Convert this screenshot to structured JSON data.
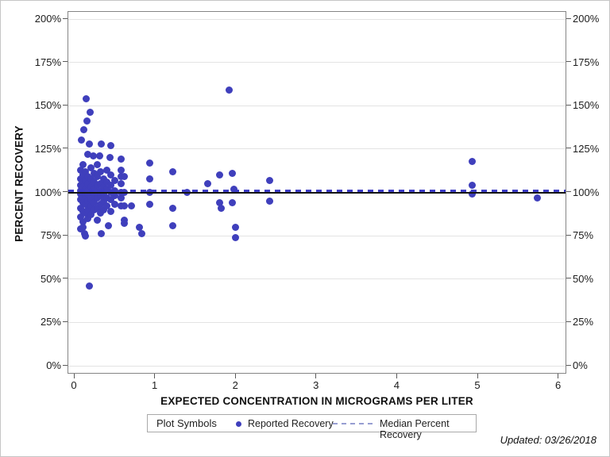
{
  "chart_data": {
    "type": "scatter",
    "xlabel": "EXPECTED CONCENTRATION IN MICROGRAMS PER LITER",
    "ylabel": "PERCENT RECOVERY",
    "xlim": [
      0,
      6
    ],
    "ylim": [
      0,
      200
    ],
    "x_ticks": [
      "0",
      "1",
      "2",
      "3",
      "4",
      "5",
      "6"
    ],
    "y_ticks": [
      "0%",
      "25%",
      "50%",
      "75%",
      "100%",
      "125%",
      "150%",
      "175%",
      "200%"
    ],
    "grid": "horizontal-only",
    "point_color": "#3f3fbc",
    "median_line_color": "#3b3bc4",
    "reference_line_color": "#141414",
    "reference_line_value": 100,
    "median_percent_recovery": 101,
    "series_name": "Reported Recovery",
    "points": [
      [
        0.14,
        154
      ],
      [
        0.19,
        146
      ],
      [
        0.15,
        141
      ],
      [
        0.11,
        136
      ],
      [
        0.08,
        130
      ],
      [
        0.18,
        128
      ],
      [
        0.33,
        128
      ],
      [
        0.45,
        127
      ],
      [
        0.16,
        122
      ],
      [
        0.23,
        121
      ],
      [
        0.31,
        121
      ],
      [
        0.44,
        120
      ],
      [
        0.58,
        119
      ],
      [
        0.07,
        113
      ],
      [
        0.07,
        108
      ],
      [
        0.07,
        104
      ],
      [
        0.07,
        101
      ],
      [
        0.07,
        99
      ],
      [
        0.07,
        96
      ],
      [
        0.07,
        91
      ],
      [
        0.07,
        86
      ],
      [
        0.07,
        79
      ],
      [
        0.1,
        116
      ],
      [
        0.1,
        110
      ],
      [
        0.1,
        106
      ],
      [
        0.1,
        103
      ],
      [
        0.1,
        100
      ],
      [
        0.1,
        97
      ],
      [
        0.1,
        94
      ],
      [
        0.1,
        89
      ],
      [
        0.1,
        83
      ],
      [
        0.13,
        112
      ],
      [
        0.13,
        107
      ],
      [
        0.13,
        102
      ],
      [
        0.13,
        100
      ],
      [
        0.13,
        98
      ],
      [
        0.13,
        93
      ],
      [
        0.13,
        88
      ],
      [
        0.16,
        109
      ],
      [
        0.16,
        105
      ],
      [
        0.16,
        101
      ],
      [
        0.16,
        99
      ],
      [
        0.16,
        95
      ],
      [
        0.16,
        90
      ],
      [
        0.16,
        85
      ],
      [
        0.2,
        114
      ],
      [
        0.2,
        108
      ],
      [
        0.2,
        103
      ],
      [
        0.2,
        100
      ],
      [
        0.2,
        96
      ],
      [
        0.2,
        92
      ],
      [
        0.2,
        87
      ],
      [
        0.24,
        111
      ],
      [
        0.24,
        106
      ],
      [
        0.24,
        102
      ],
      [
        0.24,
        98
      ],
      [
        0.24,
        94
      ],
      [
        0.24,
        90
      ],
      [
        0.28,
        116
      ],
      [
        0.28,
        109
      ],
      [
        0.28,
        104
      ],
      [
        0.28,
        100
      ],
      [
        0.28,
        97
      ],
      [
        0.28,
        91
      ],
      [
        0.28,
        84
      ],
      [
        0.32,
        112
      ],
      [
        0.32,
        105
      ],
      [
        0.32,
        101
      ],
      [
        0.32,
        98
      ],
      [
        0.32,
        93
      ],
      [
        0.32,
        88
      ],
      [
        0.36,
        108
      ],
      [
        0.36,
        103
      ],
      [
        0.36,
        99
      ],
      [
        0.36,
        95
      ],
      [
        0.36,
        90
      ],
      [
        0.4,
        113
      ],
      [
        0.4,
        106
      ],
      [
        0.4,
        102
      ],
      [
        0.4,
        97
      ],
      [
        0.4,
        92
      ],
      [
        0.45,
        110
      ],
      [
        0.45,
        104
      ],
      [
        0.45,
        100
      ],
      [
        0.45,
        96
      ],
      [
        0.45,
        89
      ],
      [
        0.5,
        107
      ],
      [
        0.5,
        101
      ],
      [
        0.5,
        98
      ],
      [
        0.5,
        93
      ],
      [
        0.58,
        113
      ],
      [
        0.58,
        109
      ],
      [
        0.58,
        105
      ],
      [
        0.58,
        100
      ],
      [
        0.58,
        97
      ],
      [
        0.58,
        92
      ],
      [
        0.62,
        109
      ],
      [
        0.62,
        100
      ],
      [
        0.62,
        92
      ],
      [
        0.62,
        84
      ],
      [
        0.7,
        92
      ],
      [
        0.1,
        80
      ],
      [
        0.12,
        76
      ],
      [
        0.13,
        75
      ],
      [
        0.33,
        76
      ],
      [
        0.42,
        81
      ],
      [
        0.62,
        82
      ],
      [
        0.8,
        80
      ],
      [
        0.83,
        76
      ],
      [
        0.18,
        46
      ],
      [
        0.93,
        117
      ],
      [
        0.93,
        108
      ],
      [
        0.93,
        100
      ],
      [
        0.93,
        93
      ],
      [
        1.22,
        112
      ],
      [
        1.22,
        91
      ],
      [
        1.22,
        81
      ],
      [
        1.39,
        100
      ],
      [
        1.65,
        105
      ],
      [
        1.8,
        110
      ],
      [
        1.95,
        111
      ],
      [
        1.97,
        102
      ],
      [
        1.8,
        94
      ],
      [
        1.82,
        91
      ],
      [
        1.95,
        94
      ],
      [
        1.91,
        159
      ],
      [
        1.99,
        80
      ],
      [
        1.99,
        74
      ],
      [
        2.42,
        107
      ],
      [
        2.42,
        95
      ],
      [
        4.93,
        118
      ],
      [
        4.93,
        104
      ],
      [
        4.93,
        99
      ],
      [
        5.73,
        97
      ]
    ]
  },
  "legend": {
    "title": "Plot Symbols",
    "items": [
      {
        "label": "Reported Recovery",
        "marker": "dot"
      },
      {
        "label": "Median Percent Recovery",
        "marker": "dashed-line"
      }
    ]
  },
  "footer": {
    "updated": "Updated: 03/26/2018"
  }
}
